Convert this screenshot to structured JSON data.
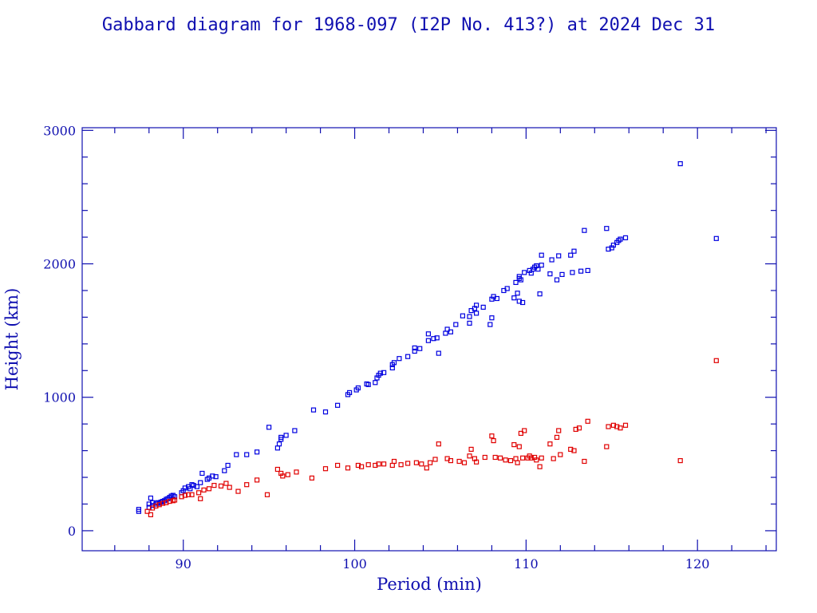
{
  "chart_data": {
    "type": "scatter",
    "title": "Gabbard diagram for 1968-097 (I2P No. 413?) at 2024 Dec 31",
    "xlabel": "Period (min)",
    "ylabel": "Height (km)",
    "xlim": [
      84.1,
      124.6
    ],
    "ylim": [
      -150,
      3020
    ],
    "xticks_major": [
      90,
      100,
      110,
      120
    ],
    "xticks_minor_step": 2,
    "yticks_major": [
      0,
      1000,
      2000,
      3000
    ],
    "yticks_minor_step": 200,
    "grid": false,
    "series": [
      {
        "color": "#0000e0",
        "points": [
          [
            87.4,
            160
          ],
          [
            87.4,
            145
          ],
          [
            88.0,
            200
          ],
          [
            88.0,
            175
          ],
          [
            88.1,
            245
          ],
          [
            88.2,
            210
          ],
          [
            88.2,
            190
          ],
          [
            88.4,
            200
          ],
          [
            88.5,
            210
          ],
          [
            88.6,
            205
          ],
          [
            88.7,
            215
          ],
          [
            88.8,
            220
          ],
          [
            88.9,
            225
          ],
          [
            89.0,
            235
          ],
          [
            89.1,
            240
          ],
          [
            89.2,
            250
          ],
          [
            89.3,
            260
          ],
          [
            89.4,
            265
          ],
          [
            89.5,
            255
          ],
          [
            89.9,
            285
          ],
          [
            90.0,
            300
          ],
          [
            90.1,
            320
          ],
          [
            90.3,
            330
          ],
          [
            90.4,
            315
          ],
          [
            90.5,
            345
          ],
          [
            90.6,
            340
          ],
          [
            90.8,
            330
          ],
          [
            91.0,
            360
          ],
          [
            91.1,
            430
          ],
          [
            91.4,
            385
          ],
          [
            91.5,
            395
          ],
          [
            91.7,
            410
          ],
          [
            91.9,
            405
          ],
          [
            92.4,
            450
          ],
          [
            92.6,
            490
          ],
          [
            93.1,
            570
          ],
          [
            93.7,
            570
          ],
          [
            94.3,
            590
          ],
          [
            95.0,
            775
          ],
          [
            95.5,
            620
          ],
          [
            95.6,
            650
          ],
          [
            95.7,
            685
          ],
          [
            95.7,
            700
          ],
          [
            96.0,
            715
          ],
          [
            96.5,
            750
          ],
          [
            97.6,
            905
          ],
          [
            98.3,
            890
          ],
          [
            99.0,
            940
          ],
          [
            99.6,
            1020
          ],
          [
            99.7,
            1035
          ],
          [
            100.1,
            1055
          ],
          [
            100.2,
            1070
          ],
          [
            100.7,
            1100
          ],
          [
            100.8,
            1095
          ],
          [
            101.2,
            1110
          ],
          [
            101.3,
            1145
          ],
          [
            101.4,
            1165
          ],
          [
            101.5,
            1180
          ],
          [
            101.7,
            1185
          ],
          [
            102.2,
            1220
          ],
          [
            102.2,
            1245
          ],
          [
            102.3,
            1260
          ],
          [
            102.6,
            1290
          ],
          [
            103.1,
            1305
          ],
          [
            103.5,
            1345
          ],
          [
            103.5,
            1370
          ],
          [
            103.8,
            1365
          ],
          [
            104.3,
            1425
          ],
          [
            104.3,
            1475
          ],
          [
            104.6,
            1440
          ],
          [
            104.8,
            1445
          ],
          [
            104.9,
            1330
          ],
          [
            105.3,
            1480
          ],
          [
            105.4,
            1510
          ],
          [
            105.6,
            1490
          ],
          [
            105.9,
            1545
          ],
          [
            106.3,
            1610
          ],
          [
            106.7,
            1555
          ],
          [
            106.7,
            1605
          ],
          [
            106.8,
            1650
          ],
          [
            107.0,
            1665
          ],
          [
            107.1,
            1690
          ],
          [
            107.1,
            1630
          ],
          [
            107.5,
            1675
          ],
          [
            107.9,
            1545
          ],
          [
            108.0,
            1595
          ],
          [
            108.0,
            1735
          ],
          [
            108.1,
            1755
          ],
          [
            108.3,
            1740
          ],
          [
            108.7,
            1800
          ],
          [
            108.9,
            1815
          ],
          [
            109.3,
            1745
          ],
          [
            109.4,
            1860
          ],
          [
            109.6,
            1890
          ],
          [
            109.6,
            1905
          ],
          [
            109.7,
            1880
          ],
          [
            109.5,
            1780
          ],
          [
            109.6,
            1720
          ],
          [
            109.8,
            1710
          ],
          [
            109.9,
            1935
          ],
          [
            110.2,
            1950
          ],
          [
            110.3,
            1930
          ],
          [
            110.4,
            1960
          ],
          [
            110.5,
            1975
          ],
          [
            110.6,
            1985
          ],
          [
            110.7,
            1960
          ],
          [
            110.8,
            1775
          ],
          [
            110.9,
            1990
          ],
          [
            110.9,
            2065
          ],
          [
            111.4,
            1925
          ],
          [
            111.5,
            2030
          ],
          [
            111.8,
            1880
          ],
          [
            111.9,
            2060
          ],
          [
            112.1,
            1920
          ],
          [
            112.6,
            2065
          ],
          [
            112.7,
            1935
          ],
          [
            112.8,
            2095
          ],
          [
            113.2,
            1945
          ],
          [
            113.4,
            2250
          ],
          [
            113.6,
            1950
          ],
          [
            114.7,
            2265
          ],
          [
            114.8,
            2110
          ],
          [
            115.0,
            2120
          ],
          [
            115.1,
            2140
          ],
          [
            115.3,
            2160
          ],
          [
            115.4,
            2175
          ],
          [
            115.5,
            2185
          ],
          [
            115.8,
            2195
          ],
          [
            119.0,
            2750
          ],
          [
            121.1,
            2190
          ]
        ]
      },
      {
        "color": "#e00000",
        "points": [
          [
            87.9,
            145
          ],
          [
            88.1,
            120
          ],
          [
            88.2,
            170
          ],
          [
            88.4,
            185
          ],
          [
            88.6,
            195
          ],
          [
            88.8,
            205
          ],
          [
            89.0,
            210
          ],
          [
            89.2,
            220
          ],
          [
            89.4,
            225
          ],
          [
            89.5,
            230
          ],
          [
            89.9,
            255
          ],
          [
            90.1,
            265
          ],
          [
            90.3,
            270
          ],
          [
            90.5,
            270
          ],
          [
            90.9,
            285
          ],
          [
            91.0,
            240
          ],
          [
            91.2,
            305
          ],
          [
            91.5,
            315
          ],
          [
            91.8,
            340
          ],
          [
            92.2,
            335
          ],
          [
            92.5,
            355
          ],
          [
            92.7,
            325
          ],
          [
            93.2,
            295
          ],
          [
            93.7,
            345
          ],
          [
            94.3,
            380
          ],
          [
            94.9,
            270
          ],
          [
            95.5,
            460
          ],
          [
            95.7,
            430
          ],
          [
            95.8,
            410
          ],
          [
            96.1,
            420
          ],
          [
            96.6,
            440
          ],
          [
            97.5,
            395
          ],
          [
            98.3,
            465
          ],
          [
            99.0,
            490
          ],
          [
            99.6,
            470
          ],
          [
            100.2,
            490
          ],
          [
            100.4,
            480
          ],
          [
            100.8,
            495
          ],
          [
            101.2,
            490
          ],
          [
            101.4,
            500
          ],
          [
            101.7,
            500
          ],
          [
            102.2,
            490
          ],
          [
            102.3,
            520
          ],
          [
            102.7,
            495
          ],
          [
            103.1,
            505
          ],
          [
            103.6,
            510
          ],
          [
            103.9,
            500
          ],
          [
            104.2,
            470
          ],
          [
            104.4,
            510
          ],
          [
            104.7,
            535
          ],
          [
            104.9,
            650
          ],
          [
            105.4,
            540
          ],
          [
            105.6,
            525
          ],
          [
            106.1,
            520
          ],
          [
            106.4,
            510
          ],
          [
            106.7,
            560
          ],
          [
            106.8,
            610
          ],
          [
            107.0,
            540
          ],
          [
            107.1,
            515
          ],
          [
            107.6,
            550
          ],
          [
            108.0,
            710
          ],
          [
            108.1,
            675
          ],
          [
            108.2,
            550
          ],
          [
            108.5,
            545
          ],
          [
            108.8,
            530
          ],
          [
            109.1,
            525
          ],
          [
            109.3,
            645
          ],
          [
            109.4,
            540
          ],
          [
            109.5,
            510
          ],
          [
            109.6,
            630
          ],
          [
            109.7,
            730
          ],
          [
            109.8,
            545
          ],
          [
            109.9,
            750
          ],
          [
            110.1,
            545
          ],
          [
            110.2,
            560
          ],
          [
            110.3,
            545
          ],
          [
            110.5,
            550
          ],
          [
            110.6,
            530
          ],
          [
            110.8,
            480
          ],
          [
            110.9,
            545
          ],
          [
            111.4,
            650
          ],
          [
            111.6,
            540
          ],
          [
            111.8,
            700
          ],
          [
            111.9,
            750
          ],
          [
            112.0,
            570
          ],
          [
            112.6,
            610
          ],
          [
            112.8,
            600
          ],
          [
            112.9,
            760
          ],
          [
            113.1,
            770
          ],
          [
            113.4,
            520
          ],
          [
            113.6,
            820
          ],
          [
            114.7,
            630
          ],
          [
            114.8,
            780
          ],
          [
            115.1,
            790
          ],
          [
            115.3,
            780
          ],
          [
            115.5,
            770
          ],
          [
            115.8,
            790
          ],
          [
            119.0,
            525
          ],
          [
            121.1,
            1275
          ]
        ]
      }
    ]
  }
}
